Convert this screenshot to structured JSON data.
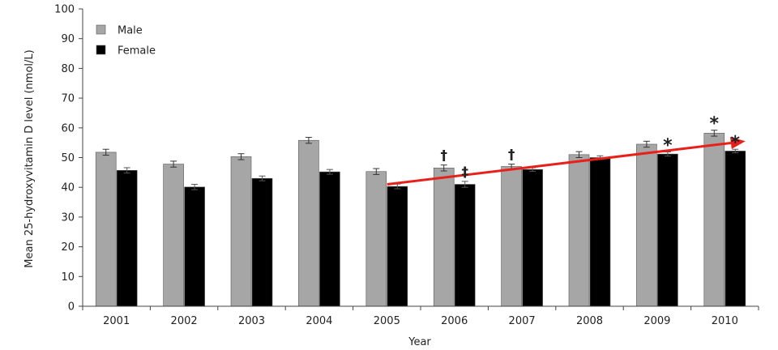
{
  "chart_data": {
    "type": "bar",
    "categories": [
      "2001",
      "2002",
      "2003",
      "2004",
      "2005",
      "2006",
      "2007",
      "2008",
      "2009",
      "2010"
    ],
    "series": [
      {
        "name": "Male",
        "color": "#a6a6a6",
        "values": [
          51.8,
          47.8,
          50.3,
          55.8,
          45.3,
          46.5,
          47.0,
          51.0,
          54.5,
          58.2
        ],
        "errors": [
          1.0,
          1.0,
          1.0,
          1.0,
          1.0,
          1.0,
          0.8,
          1.0,
          1.0,
          1.0
        ]
      },
      {
        "name": "Female",
        "color": "#000000",
        "values": [
          45.7,
          40.1,
          43.0,
          45.2,
          40.3,
          41.0,
          46.0,
          50.0,
          51.2,
          52.2
        ],
        "errors": [
          0.9,
          0.9,
          0.8,
          0.8,
          0.8,
          1.0,
          0.6,
          0.6,
          0.7,
          0.6
        ]
      }
    ],
    "xlabel": "Year",
    "ylabel": "Mean 25-hydroxyvitamin D level (nmol/L)",
    "ylim": [
      0,
      100
    ],
    "yticks": [
      0,
      10,
      20,
      30,
      40,
      50,
      60,
      70,
      80,
      90,
      100
    ],
    "grid": false,
    "legend": "top-left",
    "annotations": [
      {
        "symbol": "†",
        "category": "2006",
        "series": "Male"
      },
      {
        "symbol": "‡",
        "category": "2006",
        "series": "Female"
      },
      {
        "symbol": "†",
        "category": "2007",
        "series": "Male"
      },
      {
        "symbol": "*",
        "category": "2009",
        "series": "Female"
      },
      {
        "symbol": "*",
        "category": "2010",
        "series": "Male"
      },
      {
        "symbol": "*",
        "category": "2010",
        "series": "Female"
      }
    ],
    "trend_arrow": {
      "color": "#e8201a",
      "from": {
        "category": "2005",
        "series": "Female",
        "value": 41.0
      },
      "to": {
        "category": "2010",
        "series": "Female",
        "value": 55.5
      }
    }
  }
}
